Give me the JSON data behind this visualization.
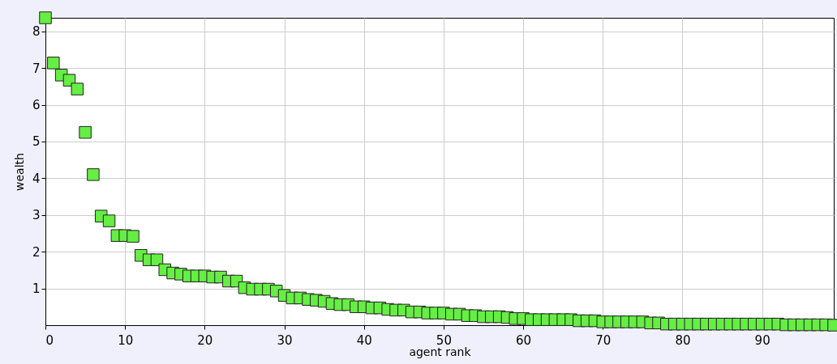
{
  "chart_data": {
    "type": "scatter",
    "xlabel": "agent rank",
    "ylabel": "wealth",
    "marker": "square",
    "grid": true,
    "xlim": [
      0,
      99
    ],
    "xticks": [
      0,
      10,
      20,
      30,
      40,
      50,
      60,
      70,
      80,
      90
    ],
    "ylim": [
      0,
      8.37
    ],
    "yticks": [
      1,
      2,
      3,
      4,
      5,
      6,
      7,
      8
    ],
    "x": [
      0,
      1,
      2,
      3,
      4,
      5,
      6,
      7,
      8,
      9,
      10,
      11,
      12,
      13,
      14,
      15,
      16,
      17,
      18,
      19,
      20,
      21,
      22,
      23,
      24,
      25,
      26,
      27,
      28,
      29,
      30,
      31,
      32,
      33,
      34,
      35,
      36,
      37,
      38,
      39,
      40,
      41,
      42,
      43,
      44,
      45,
      46,
      47,
      48,
      49,
      50,
      51,
      52,
      53,
      54,
      55,
      56,
      57,
      58,
      59,
      60,
      61,
      62,
      63,
      64,
      65,
      66,
      67,
      68,
      69,
      70,
      71,
      72,
      73,
      74,
      75,
      76,
      77,
      78,
      79,
      80,
      81,
      82,
      83,
      84,
      85,
      86,
      87,
      88,
      89,
      90,
      91,
      92,
      93,
      94,
      95,
      96,
      97,
      98,
      99
    ],
    "series": [
      {
        "color": "#66ee44",
        "values": [
          8.37,
          7.14,
          6.81,
          6.67,
          6.43,
          5.25,
          4.1,
          2.97,
          2.84,
          2.44,
          2.44,
          2.42,
          1.9,
          1.78,
          1.78,
          1.51,
          1.42,
          1.39,
          1.34,
          1.34,
          1.34,
          1.31,
          1.31,
          1.2,
          1.2,
          1.02,
          0.98,
          0.98,
          0.98,
          0.93,
          0.81,
          0.74,
          0.74,
          0.7,
          0.68,
          0.65,
          0.59,
          0.56,
          0.56,
          0.5,
          0.5,
          0.47,
          0.47,
          0.43,
          0.41,
          0.41,
          0.36,
          0.36,
          0.33,
          0.33,
          0.33,
          0.3,
          0.3,
          0.26,
          0.26,
          0.23,
          0.23,
          0.23,
          0.21,
          0.18,
          0.18,
          0.15,
          0.15,
          0.15,
          0.15,
          0.15,
          0.15,
          0.12,
          0.12,
          0.12,
          0.09,
          0.09,
          0.09,
          0.09,
          0.09,
          0.09,
          0.06,
          0.06,
          0.03,
          0.03,
          0.03,
          0.03,
          0.03,
          0.03,
          0.03,
          0.03,
          0.03,
          0.03,
          0.03,
          0.03,
          0.03,
          0.03,
          0.03,
          0.01,
          0.01,
          0.01,
          0.01,
          0.01,
          0.01,
          0
        ]
      }
    ]
  }
}
